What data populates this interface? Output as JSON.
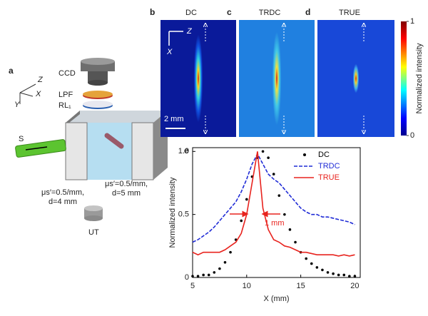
{
  "figure": {
    "panel_a": {
      "label": "a",
      "axis_z": "Z",
      "axis_x": "X",
      "axis_y": "Y",
      "ccd": "CCD",
      "lpf": "LPF",
      "rl": "RL₁",
      "source": "S",
      "medium_left_1": "μs′=0.5/mm,",
      "medium_left_2": "d=4 mm",
      "medium_right_1": "μs′=0.5/mm,",
      "medium_right_2": "d=5 mm",
      "ut": "UT"
    },
    "panel_b": {
      "label": "b",
      "title": "DC",
      "axis_z": "Z",
      "axis_x": "X",
      "scale_bar": "2 mm"
    },
    "panel_c": {
      "label": "c",
      "title": "TRDC"
    },
    "panel_d": {
      "label": "d",
      "title": "TRUE"
    },
    "colorbar": {
      "label": "Normalized intensity",
      "ticks": [
        0,
        1
      ]
    },
    "panel_e": {
      "label": "e"
    }
  },
  "chart_data": {
    "type": "line",
    "xlabel": "X (mm)",
    "ylabel": "Normalized intensity",
    "x": [
      5,
      5.5,
      6,
      6.5,
      7,
      7.5,
      8,
      8.5,
      9,
      9.5,
      10,
      10.5,
      11,
      11.5,
      12,
      12.5,
      13,
      13.5,
      14,
      14.5,
      15,
      15.5,
      16,
      16.5,
      17,
      17.5,
      18,
      18.5,
      19,
      19.5,
      20
    ],
    "series": [
      {
        "name": "DC",
        "color": "#000000",
        "style": "dots",
        "values": [
          0.01,
          0.01,
          0.02,
          0.02,
          0.04,
          0.07,
          0.12,
          0.2,
          0.3,
          0.45,
          0.62,
          0.8,
          0.95,
          1.0,
          0.95,
          0.82,
          0.65,
          0.5,
          0.38,
          0.28,
          0.2,
          0.15,
          0.11,
          0.08,
          0.06,
          0.04,
          0.03,
          0.02,
          0.02,
          0.01,
          0.01
        ]
      },
      {
        "name": "TRDC",
        "color": "#1f2bd6",
        "style": "dashed",
        "values": [
          0.28,
          0.3,
          0.33,
          0.36,
          0.4,
          0.45,
          0.5,
          0.55,
          0.6,
          0.68,
          0.78,
          0.9,
          0.98,
          0.9,
          0.82,
          0.78,
          0.75,
          0.7,
          0.65,
          0.6,
          0.55,
          0.52,
          0.5,
          0.5,
          0.48,
          0.48,
          0.47,
          0.46,
          0.45,
          0.44,
          0.42
        ]
      },
      {
        "name": "TRUE",
        "color": "#e8231e",
        "style": "solid",
        "values": [
          0.2,
          0.18,
          0.2,
          0.2,
          0.2,
          0.2,
          0.22,
          0.25,
          0.28,
          0.35,
          0.5,
          0.75,
          1.0,
          0.55,
          0.38,
          0.3,
          0.28,
          0.25,
          0.24,
          0.22,
          0.2,
          0.2,
          0.19,
          0.18,
          0.18,
          0.18,
          0.18,
          0.17,
          0.18,
          0.17,
          0.18
        ]
      }
    ],
    "xlim": [
      5,
      20.5
    ],
    "ylim": [
      0,
      1.03
    ],
    "xticks": [
      5,
      10,
      15,
      20
    ],
    "yticks": [
      0,
      0.5,
      {
        "value": 1,
        "label": "1.0"
      }
    ],
    "annotation": "1 mm",
    "annotation_color": "#e8231e"
  }
}
